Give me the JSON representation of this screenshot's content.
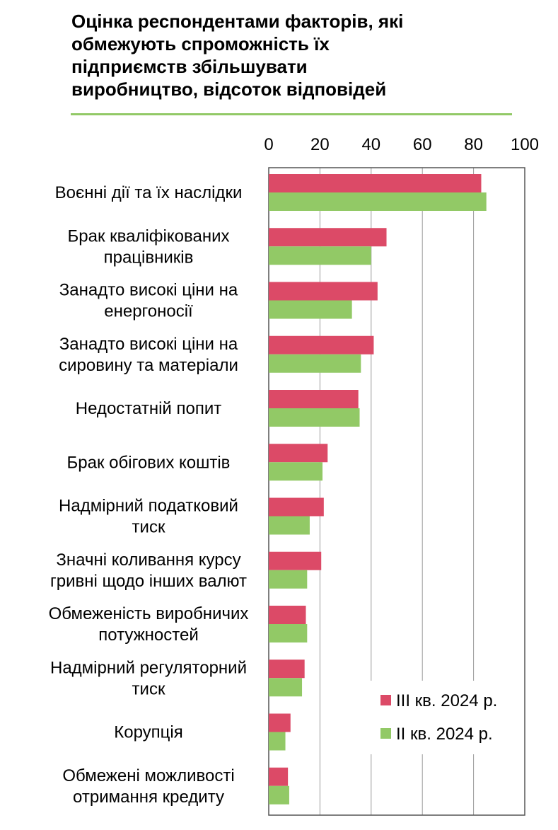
{
  "chart_data": {
    "type": "bar",
    "orientation": "horizontal",
    "title": "Оцінка респондентами факторів, які\nобмежують спроможність їх\nпідприємств збільшувати\nвиробництво, відсоток відповідей",
    "xlim": [
      0,
      100
    ],
    "xticks": [
      "0",
      "20",
      "40",
      "60",
      "80",
      "100"
    ],
    "axis_position": "top",
    "grid": true,
    "legend_position": "bottom-right",
    "categories": [
      [
        "Воєнні дії та їх наслідки"
      ],
      [
        "Брак кваліфікованих",
        "працівників"
      ],
      [
        "Занадто високі ціни на",
        "енергоносії"
      ],
      [
        "Занадто високі ціни на",
        "сировину та матеріали"
      ],
      [
        "Недостатній  попит"
      ],
      [
        "Брак обігових коштів"
      ],
      [
        "Надмірний податковий",
        "тиск"
      ],
      [
        "Значні коливання курсу",
        "гривні щодо інших валют"
      ],
      [
        "Обмеженість виробничих",
        "потужностей"
      ],
      [
        "Надмірний регуляторний",
        "тиск"
      ],
      [
        "Корупція"
      ],
      [
        "Обмежені можливості",
        "отримання кредиту"
      ]
    ],
    "series": [
      {
        "name": "III кв. 2024 р.",
        "color": "#DC4A67",
        "values": [
          83,
          46,
          42.5,
          41,
          35,
          23,
          21.5,
          20.5,
          14.5,
          14,
          8.5,
          7.5
        ]
      },
      {
        "name": "II кв. 2024 р.",
        "color": "#92C966",
        "values": [
          85,
          40,
          32.5,
          36,
          35.5,
          21,
          16,
          15,
          15,
          13,
          6.5,
          8
        ]
      }
    ]
  }
}
